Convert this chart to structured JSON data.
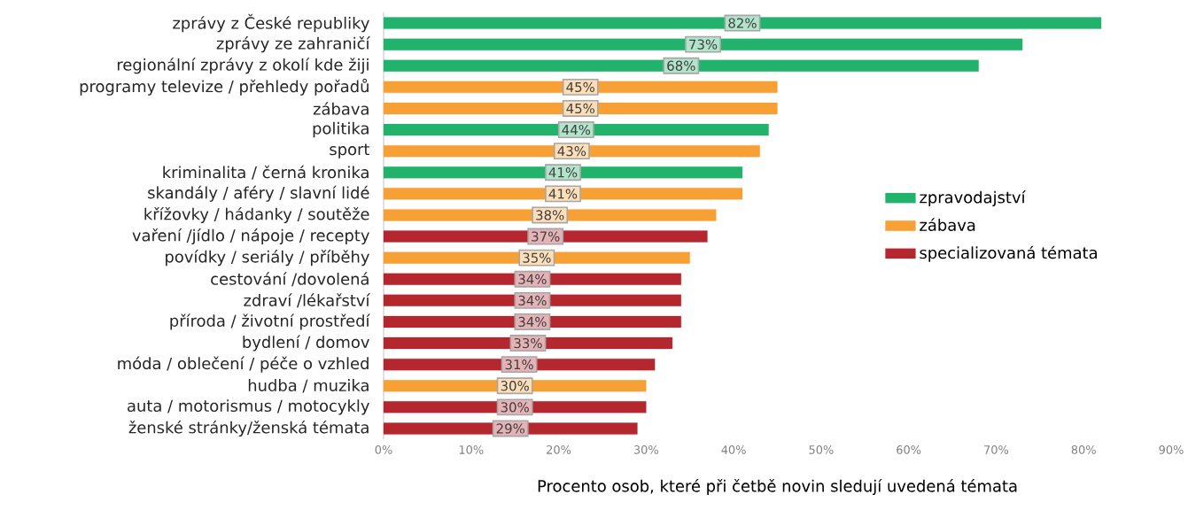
{
  "chart_data": {
    "type": "bar",
    "orientation": "horizontal",
    "xlabel": "Procento osob, které při četbě novin sledují uvedená témata",
    "categories": [
      "zprávy z České republiky",
      "zprávy ze zahraničí",
      "regionální zprávy z okolí kde žiji",
      "programy televize / přehledy pořadů",
      "zábava",
      "politika",
      "sport",
      "kriminalita / černá kronika",
      "skandály / aféry / slavní lidé",
      "křížovky / hádanky / soutěže",
      "vaření /jídlo / nápoje / recepty",
      "povídky / seriály / příběhy",
      "cestování /dovolená",
      "zdraví /lékařství",
      "příroda / životní prostředí",
      "bydlení / domov",
      "móda / oblečení / péče o vzhled",
      "hudba / muzika",
      "auta / motorismus / motocykly",
      "ženské stránky/ženská témata"
    ],
    "series": [
      {
        "name": "zpravodajství",
        "color": "#21b36b",
        "values": [
          82,
          73,
          68,
          null,
          null,
          44,
          null,
          41,
          null,
          null,
          null,
          null,
          null,
          null,
          null,
          null,
          null,
          null,
          null,
          null
        ],
        "value_labels": [
          "82%",
          "73%",
          "68%",
          null,
          null,
          "44%",
          null,
          "41%",
          null,
          null,
          null,
          null,
          null,
          null,
          null,
          null,
          null,
          null,
          null,
          null
        ]
      },
      {
        "name": "zábava",
        "color": "#f7a035",
        "values": [
          null,
          null,
          null,
          45,
          45,
          null,
          43,
          null,
          41,
          38,
          null,
          35,
          null,
          null,
          null,
          null,
          null,
          30,
          null,
          null
        ],
        "value_labels": [
          null,
          null,
          null,
          "45%",
          "45%",
          null,
          "43%",
          null,
          "41%",
          "38%",
          null,
          "35%",
          null,
          null,
          null,
          null,
          null,
          "30%",
          null,
          null
        ]
      },
      {
        "name": "specializovaná témata",
        "color": "#b5272e",
        "values": [
          null,
          null,
          null,
          null,
          null,
          null,
          null,
          null,
          null,
          null,
          37,
          null,
          34,
          34,
          34,
          33,
          31,
          null,
          30,
          29
        ],
        "value_labels": [
          null,
          null,
          null,
          null,
          null,
          null,
          null,
          null,
          null,
          null,
          "37%",
          null,
          "34%",
          "34%",
          "34%",
          "33%",
          "31%",
          null,
          "30%",
          "29%"
        ]
      }
    ],
    "xlim": [
      0,
      90
    ],
    "xticks": [
      {
        "value": 0,
        "label": "0%"
      },
      {
        "value": 10,
        "label": "10%"
      },
      {
        "value": 20,
        "label": "20%"
      },
      {
        "value": 30,
        "label": "30%"
      },
      {
        "value": 40,
        "label": "40%"
      },
      {
        "value": 50,
        "label": "50%"
      },
      {
        "value": 60,
        "label": "60%"
      },
      {
        "value": 70,
        "label": "70%"
      },
      {
        "value": 80,
        "label": "80%"
      },
      {
        "value": 90,
        "label": "90%"
      }
    ],
    "legend": "right",
    "grid": false
  }
}
